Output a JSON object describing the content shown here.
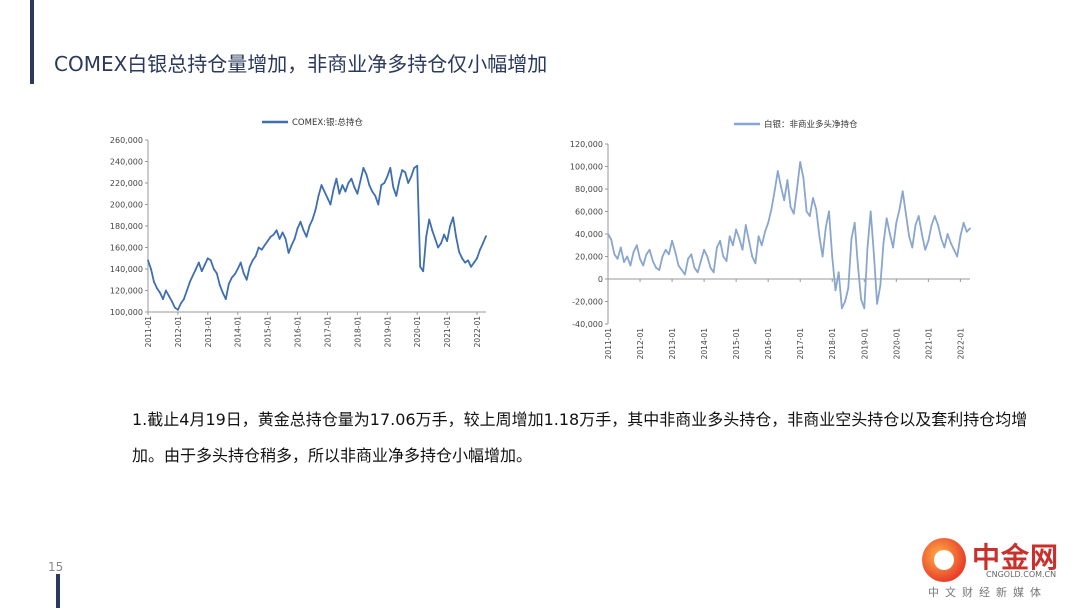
{
  "slide": {
    "title": "COMEX白银总持仓量增加，非商业净多持仓仅小幅增加",
    "body_text": "1.截止4月19日，黄金总持仓量为17.06万手，较上周增加1.18万手，其中非商业多头持仓，非商业空头持仓以及套利持仓均增加。由于多头持仓稍多，所以非商业净多持仓小幅增加。",
    "page_number": "15"
  },
  "logo": {
    "name": "中金网",
    "url": "CNGOLD.COM.CN",
    "subtitle": "中文财经新媒体"
  },
  "chart_data": [
    {
      "type": "line",
      "title": "",
      "xlabel": "",
      "ylabel": "",
      "ylim": [
        100000,
        260000
      ],
      "yticks": [
        100000,
        120000,
        140000,
        160000,
        180000,
        200000,
        220000,
        240000,
        260000
      ],
      "ytick_labels": [
        "100,000",
        "120,000",
        "140,000",
        "160,000",
        "180,000",
        "200,000",
        "220,000",
        "240,000",
        "260,000"
      ],
      "xlim": [
        2011.0,
        2022.3
      ],
      "xticks": [
        "2011-01",
        "2012-01",
        "2013-01",
        "2014-01",
        "2015-01",
        "2016-01",
        "2017-01",
        "2018-01",
        "2019-01",
        "2020-01",
        "2021-01",
        "2022-01"
      ],
      "legend": "top-center",
      "grid": false,
      "series": [
        {
          "name": "COMEX:银:总持仓",
          "color": "#3f6fb0",
          "x": [
            2011.0,
            2011.1,
            2011.2,
            2011.3,
            2011.4,
            2011.5,
            2011.6,
            2011.7,
            2011.8,
            2011.9,
            2012.0,
            2012.1,
            2012.2,
            2012.3,
            2012.4,
            2012.5,
            2012.6,
            2012.7,
            2012.8,
            2012.9,
            2013.0,
            2013.1,
            2013.2,
            2013.3,
            2013.4,
            2013.5,
            2013.6,
            2013.7,
            2013.8,
            2013.9,
            2014.0,
            2014.1,
            2014.2,
            2014.3,
            2014.4,
            2014.5,
            2014.6,
            2014.7,
            2014.8,
            2014.9,
            2015.0,
            2015.1,
            2015.2,
            2015.3,
            2015.4,
            2015.5,
            2015.6,
            2015.7,
            2015.8,
            2015.9,
            2016.0,
            2016.1,
            2016.2,
            2016.3,
            2016.4,
            2016.5,
            2016.6,
            2016.7,
            2016.8,
            2016.9,
            2017.0,
            2017.1,
            2017.2,
            2017.3,
            2017.4,
            2017.5,
            2017.6,
            2017.7,
            2017.8,
            2017.9,
            2018.0,
            2018.1,
            2018.2,
            2018.3,
            2018.4,
            2018.5,
            2018.6,
            2018.7,
            2018.8,
            2018.9,
            2019.0,
            2019.1,
            2019.2,
            2019.3,
            2019.4,
            2019.5,
            2019.6,
            2019.7,
            2019.8,
            2019.9,
            2020.0,
            2020.1,
            2020.2,
            2020.3,
            2020.4,
            2020.5,
            2020.6,
            2020.7,
            2020.8,
            2020.9,
            2021.0,
            2021.1,
            2021.2,
            2021.3,
            2021.4,
            2021.5,
            2021.6,
            2021.7,
            2021.8,
            2021.9,
            2022.0,
            2022.1,
            2022.2,
            2022.3
          ],
          "values": [
            148000,
            140000,
            128000,
            122000,
            118000,
            112000,
            120000,
            115000,
            110000,
            104000,
            102000,
            108000,
            112000,
            120000,
            128000,
            134000,
            140000,
            146000,
            138000,
            144000,
            150000,
            148000,
            140000,
            136000,
            125000,
            118000,
            112000,
            126000,
            132000,
            135000,
            140000,
            146000,
            136000,
            130000,
            142000,
            148000,
            152000,
            160000,
            158000,
            162000,
            166000,
            170000,
            172000,
            176000,
            168000,
            174000,
            168000,
            155000,
            162000,
            168000,
            178000,
            184000,
            176000,
            170000,
            180000,
            186000,
            195000,
            208000,
            218000,
            212000,
            206000,
            200000,
            214000,
            224000,
            210000,
            218000,
            212000,
            220000,
            224000,
            216000,
            210000,
            222000,
            234000,
            228000,
            218000,
            212000,
            208000,
            200000,
            218000,
            220000,
            226000,
            234000,
            216000,
            208000,
            222000,
            232000,
            230000,
            220000,
            226000,
            234000,
            236000,
            142000,
            138000,
            170000,
            186000,
            176000,
            168000,
            160000,
            164000,
            172000,
            166000,
            180000,
            188000,
            170000,
            156000,
            150000,
            146000,
            148000,
            142000,
            146000,
            150000,
            158000,
            164000,
            170600
          ]
        }
      ]
    },
    {
      "type": "line",
      "title": "",
      "xlabel": "",
      "ylabel": "",
      "ylim": [
        -40000,
        120000
      ],
      "yticks": [
        -40000,
        -20000,
        0,
        20000,
        40000,
        60000,
        80000,
        100000,
        120000
      ],
      "ytick_labels": [
        "-40,000",
        "-20,000",
        "0",
        "20,000",
        "40,000",
        "60,000",
        "80,000",
        "100,000",
        "120,000"
      ],
      "xlim": [
        2011.0,
        2022.3
      ],
      "xticks": [
        "2011-01",
        "2012-01",
        "2013-01",
        "2014-01",
        "2015-01",
        "2016-01",
        "2017-01",
        "2018-01",
        "2019-01",
        "2020-01",
        "2021-01",
        "2022-01"
      ],
      "legend": "top-center",
      "grid": false,
      "series": [
        {
          "name": "白银：非商业多头净持仓",
          "color": "#8aa6cf",
          "x": [
            2011.0,
            2011.1,
            2011.2,
            2011.3,
            2011.4,
            2011.5,
            2011.6,
            2011.7,
            2011.8,
            2011.9,
            2012.0,
            2012.1,
            2012.2,
            2012.3,
            2012.4,
            2012.5,
            2012.6,
            2012.7,
            2012.8,
            2012.9,
            2013.0,
            2013.1,
            2013.2,
            2013.3,
            2013.4,
            2013.5,
            2013.6,
            2013.7,
            2013.8,
            2013.9,
            2014.0,
            2014.1,
            2014.2,
            2014.3,
            2014.4,
            2014.5,
            2014.6,
            2014.7,
            2014.8,
            2014.9,
            2015.0,
            2015.1,
            2015.2,
            2015.3,
            2015.4,
            2015.5,
            2015.6,
            2015.7,
            2015.8,
            2015.9,
            2016.0,
            2016.1,
            2016.2,
            2016.3,
            2016.4,
            2016.5,
            2016.6,
            2016.7,
            2016.8,
            2016.9,
            2017.0,
            2017.1,
            2017.2,
            2017.3,
            2017.4,
            2017.5,
            2017.6,
            2017.7,
            2017.8,
            2017.9,
            2018.0,
            2018.1,
            2018.2,
            2018.3,
            2018.4,
            2018.5,
            2018.6,
            2018.7,
            2018.8,
            2018.9,
            2019.0,
            2019.1,
            2019.2,
            2019.3,
            2019.4,
            2019.5,
            2019.6,
            2019.7,
            2019.8,
            2019.9,
            2020.0,
            2020.1,
            2020.2,
            2020.3,
            2020.4,
            2020.5,
            2020.6,
            2020.7,
            2020.8,
            2020.9,
            2021.0,
            2021.1,
            2021.2,
            2021.3,
            2021.4,
            2021.5,
            2021.6,
            2021.7,
            2021.8,
            2021.9,
            2022.0,
            2022.1,
            2022.2,
            2022.3
          ],
          "values": [
            40000,
            35000,
            22000,
            18000,
            28000,
            15000,
            20000,
            12000,
            24000,
            30000,
            18000,
            12000,
            22000,
            26000,
            16000,
            10000,
            8000,
            20000,
            26000,
            22000,
            34000,
            24000,
            12000,
            8000,
            4000,
            18000,
            22000,
            10000,
            6000,
            16000,
            26000,
            20000,
            10000,
            6000,
            28000,
            34000,
            20000,
            16000,
            38000,
            30000,
            44000,
            36000,
            26000,
            48000,
            34000,
            20000,
            14000,
            38000,
            30000,
            42000,
            50000,
            62000,
            78000,
            96000,
            82000,
            70000,
            88000,
            64000,
            58000,
            80000,
            104000,
            90000,
            60000,
            56000,
            72000,
            62000,
            38000,
            20000,
            46000,
            60000,
            20000,
            -10000,
            6000,
            -26000,
            -20000,
            -8000,
            36000,
            50000,
            12000,
            -18000,
            -26000,
            28000,
            60000,
            22000,
            -22000,
            -6000,
            32000,
            54000,
            40000,
            28000,
            50000,
            62000,
            78000,
            58000,
            38000,
            28000,
            48000,
            56000,
            40000,
            26000,
            34000,
            48000,
            56000,
            48000,
            36000,
            28000,
            40000,
            32000,
            26000,
            20000,
            38000,
            50000,
            42000,
            45000
          ]
        }
      ]
    }
  ]
}
